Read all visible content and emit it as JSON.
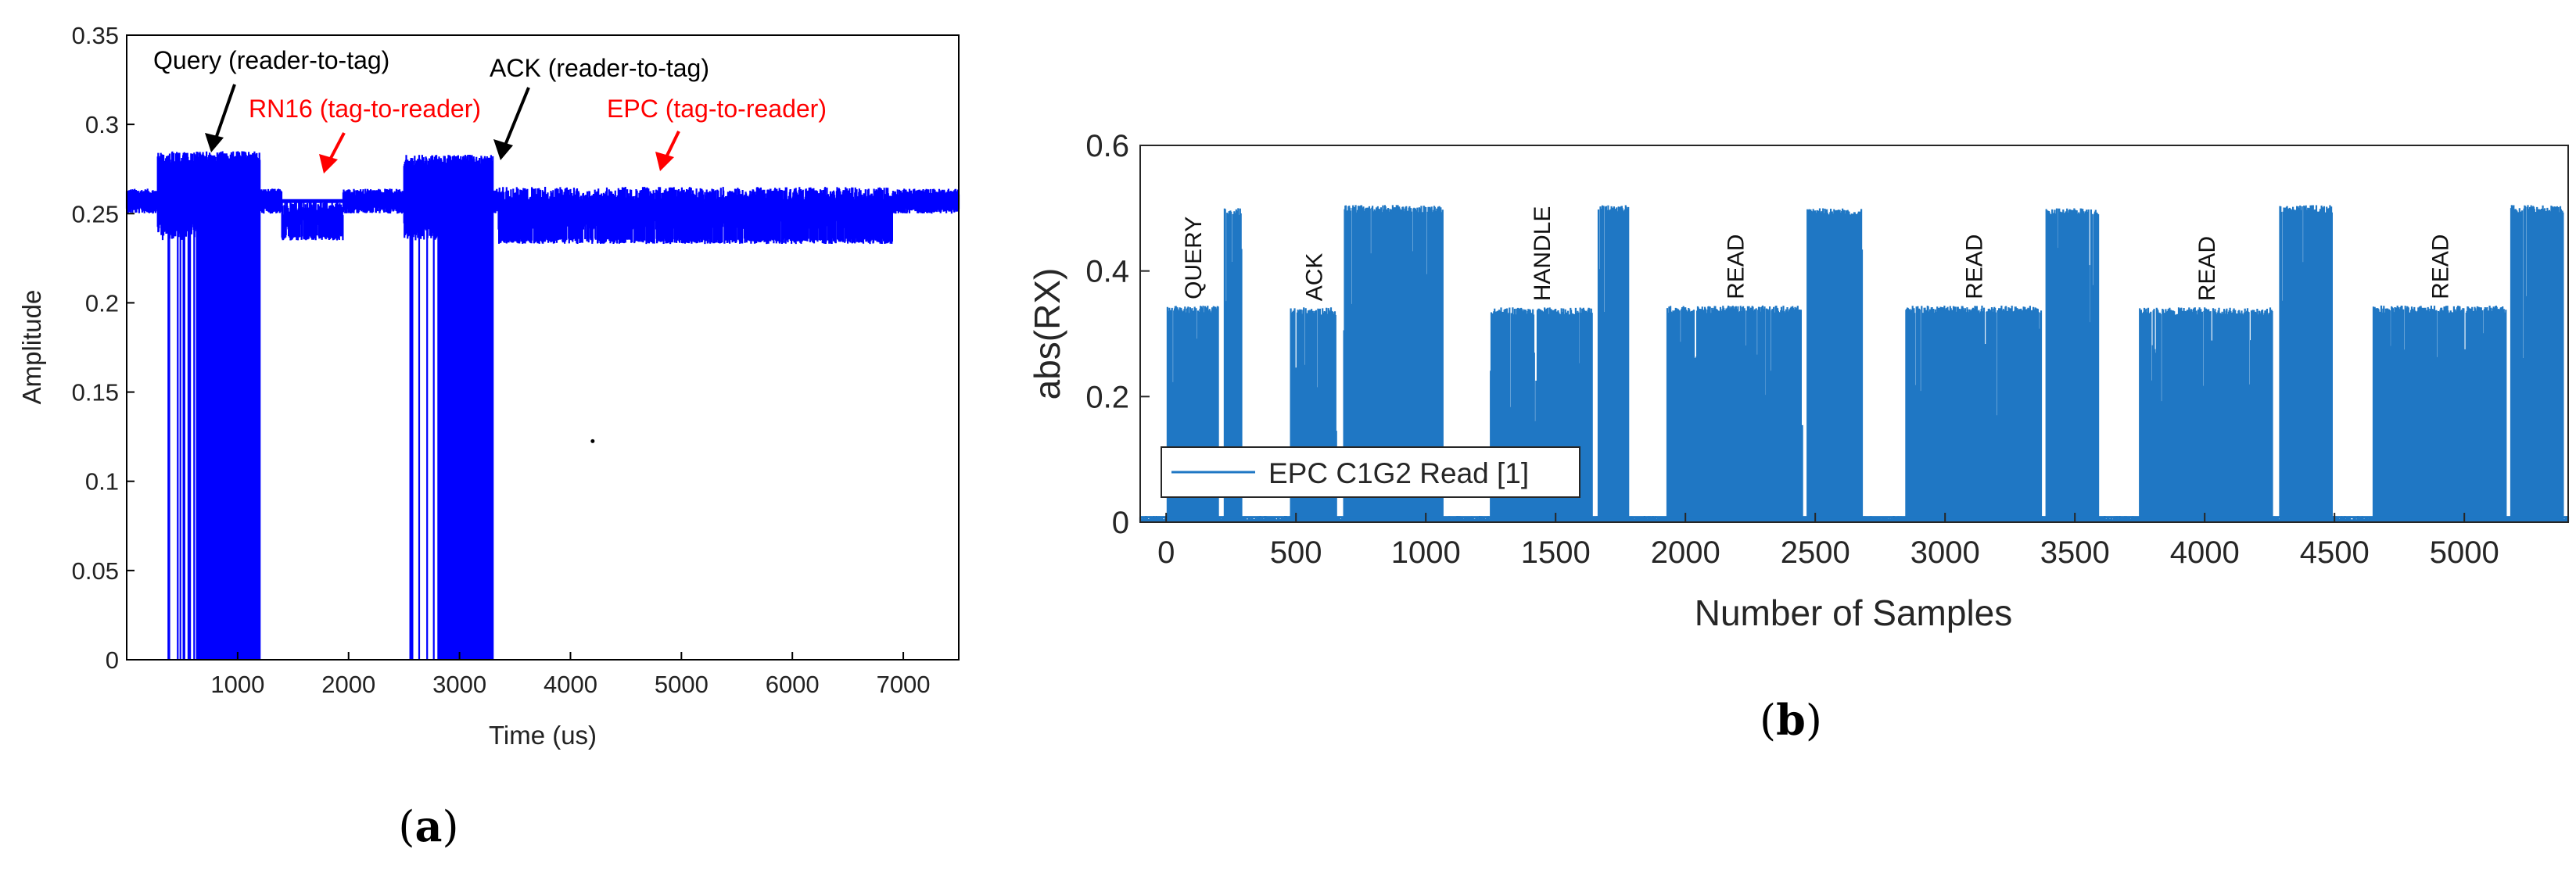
{
  "chart_data": [
    {
      "type": "line",
      "panel": "(a)",
      "panel_letter": "a",
      "title": "",
      "xlabel": "Time (us)",
      "ylabel": "Amplitude",
      "xlim": [
        0,
        7500
      ],
      "ylim": [
        0,
        0.35
      ],
      "xticks": [
        1000,
        2000,
        3000,
        4000,
        5000,
        6000,
        7000
      ],
      "yticks": [
        0,
        0.05,
        0.1,
        0.15,
        0.2,
        0.25,
        0.3,
        0.35
      ],
      "ytick_labels": [
        "0",
        "0.05",
        "0.1",
        "0.15",
        "0.2",
        "0.25",
        "0.3",
        "0.35"
      ],
      "baseline": 0.257,
      "color": "#0000ff",
      "segments": [
        {
          "name": "Query (reader-to-tag)",
          "x0": 280,
          "x1": 1200,
          "high": 0.285,
          "low": 0
        },
        {
          "name": "RN16 (tag-to-reader)",
          "x0": 1400,
          "x1": 1950,
          "high": 0.258,
          "low": 0.235
        },
        {
          "name": "ACK (reader-to-tag)",
          "x0": 2500,
          "x1": 3300,
          "high": 0.283,
          "low": 0
        },
        {
          "name": "EPC (tag-to-reader)",
          "x0": 3350,
          "x1": 6900,
          "high": 0.265,
          "low": 0.233
        }
      ],
      "annotations": [
        {
          "text": "Query (reader-to-tag)",
          "color": "#000000",
          "target_x": 700,
          "target_y": 0.283
        },
        {
          "text": "RN16 (tag-to-reader)",
          "color": "#ff0000",
          "target_x": 1700,
          "target_y": 0.26
        },
        {
          "text": "ACK (reader-to-tag)",
          "color": "#000000",
          "target_x": 3300,
          "target_y": 0.275
        },
        {
          "text": "EPC (tag-to-reader)",
          "color": "#ff0000",
          "target_x": 4750,
          "target_y": 0.265
        }
      ]
    },
    {
      "type": "line",
      "panel": "(b)",
      "panel_letter": "b",
      "title": "",
      "xlabel": "Number of Samples",
      "ylabel": "abs(RX)",
      "xlim": [
        -100,
        5400
      ],
      "ylim": [
        0,
        0.6
      ],
      "xticks": [
        0,
        500,
        1000,
        1500,
        2000,
        2500,
        3000,
        3500,
        4000,
        4500,
        5000
      ],
      "yticks": [
        0,
        0.2,
        0.4,
        0.6
      ],
      "ytick_labels": [
        "0",
        "0.2",
        "0.4",
        "0.6"
      ],
      "legend": [
        "EPC C1G2 Read [1]"
      ],
      "legend_position": "center-left",
      "color": "#1f77c4",
      "bursts": [
        {
          "x0": 5,
          "x1": 200,
          "peak": 0.345,
          "label": "QUERY"
        },
        {
          "x0": 225,
          "x1": 290,
          "peak": 0.5
        },
        {
          "x0": 480,
          "x1": 655,
          "peak": 0.342,
          "label": "ACK"
        },
        {
          "x0": 685,
          "x1": 1065,
          "peak": 0.505
        },
        {
          "x0": 1250,
          "x1": 1640,
          "peak": 0.342,
          "label": "HANDLE"
        },
        {
          "x0": 1665,
          "x1": 1780,
          "peak": 0.505
        },
        {
          "x0": 1930,
          "x1": 2450,
          "peak": 0.345,
          "label": "READ"
        },
        {
          "x0": 2470,
          "x1": 2680,
          "peak": 0.5
        },
        {
          "x0": 2850,
          "x1": 3370,
          "peak": 0.345,
          "label": "READ"
        },
        {
          "x0": 3390,
          "x1": 3590,
          "peak": 0.5
        },
        {
          "x0": 3750,
          "x1": 4260,
          "peak": 0.342,
          "label": "READ"
        },
        {
          "x0": 4290,
          "x1": 4490,
          "peak": 0.505
        },
        {
          "x0": 4650,
          "x1": 5160,
          "peak": 0.345,
          "label": "READ"
        },
        {
          "x0": 5180,
          "x1": 5380,
          "peak": 0.505
        }
      ]
    }
  ]
}
